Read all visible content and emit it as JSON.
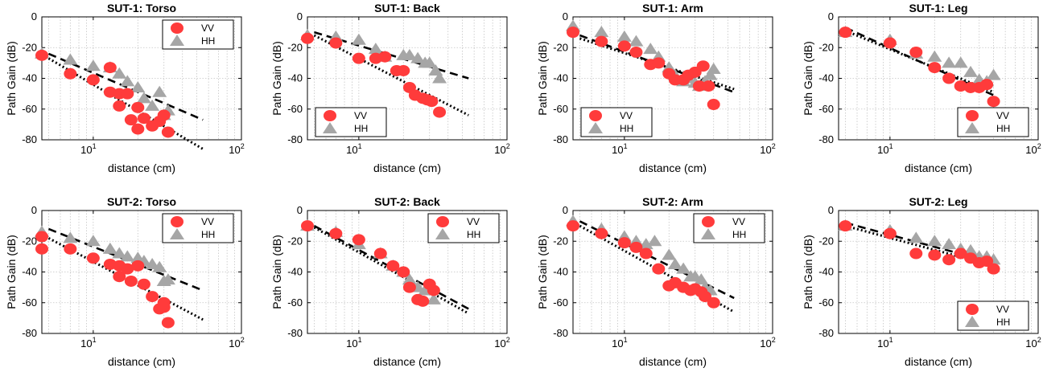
{
  "chart_data": [
    {
      "type": "scatter",
      "title": "SUT-1: Torso",
      "xlabel": "distance (cm)",
      "ylabel": "Path Gain (dB)",
      "xscale": "log",
      "xlim": [
        4.5,
        100
      ],
      "ylim": [
        -80,
        0
      ],
      "xticks": [
        "10",
        "2"
      ],
      "yticks": [
        "0",
        "-20",
        "-40",
        "-60",
        "-80"
      ],
      "legend": {
        "placement": "top-right",
        "entries": [
          "VV",
          "HH"
        ]
      },
      "series": [
        {
          "name": "VV",
          "marker": "circle",
          "color": "#ff3b3b",
          "x": [
            4.5,
            7,
            10,
            13,
            13,
            15,
            15,
            17,
            18,
            20,
            20,
            22,
            25,
            28,
            30,
            32
          ],
          "y": [
            -25,
            -37,
            -41,
            -33,
            -49,
            -50,
            -58,
            -50,
            -67,
            -59,
            -73,
            -66,
            -71,
            -68,
            -64,
            -75
          ]
        },
        {
          "name": "HH",
          "marker": "triangle",
          "color": "#a6a6a6",
          "x": [
            4.5,
            7,
            10,
            13,
            15,
            17,
            20,
            22,
            25,
            28,
            30,
            32
          ],
          "y": [
            -24,
            -28,
            -32,
            -33,
            -37,
            -42,
            -46,
            -53,
            -58,
            -49,
            -64,
            -61
          ]
        }
      ],
      "fit_lines": [
        {
          "style": "dashed",
          "x": [
            5,
            55
          ],
          "y": [
            -24,
            -67
          ]
        },
        {
          "style": "dotted",
          "x": [
            5,
            55
          ],
          "y": [
            -27,
            -86
          ]
        }
      ]
    },
    {
      "type": "scatter",
      "title": "SUT-1: Back",
      "xlabel": "distance (cm)",
      "ylabel": "Path Gain (dB)",
      "xscale": "log",
      "xlim": [
        4.5,
        100
      ],
      "ylim": [
        -80,
        0
      ],
      "xticks": [
        "10",
        "2"
      ],
      "yticks": [
        "0",
        "-20",
        "-40",
        "-60",
        "-80"
      ],
      "legend": {
        "placement": "bottom-left",
        "entries": [
          "VV",
          "HH"
        ]
      },
      "series": [
        {
          "name": "VV",
          "marker": "circle",
          "color": "#ff3b3b",
          "x": [
            4.5,
            7,
            10,
            13,
            15,
            18,
            20,
            22,
            24,
            27,
            29,
            31,
            35
          ],
          "y": [
            -14,
            -17,
            -27,
            -27,
            -26,
            -35,
            -35,
            -46,
            -51,
            -53,
            -54,
            -55,
            -62
          ]
        },
        {
          "name": "HH",
          "marker": "triangle",
          "color": "#a6a6a6",
          "x": [
            4.5,
            7,
            10,
            13,
            15,
            20,
            22,
            25,
            28,
            30,
            33,
            35
          ],
          "y": [
            -12,
            -13,
            -15,
            -21,
            -26,
            -25,
            -25,
            -27,
            -30,
            -30,
            -35,
            -40
          ]
        }
      ],
      "fit_lines": [
        {
          "style": "dashed",
          "x": [
            5,
            55
          ],
          "y": [
            -10,
            -40
          ]
        },
        {
          "style": "dotted",
          "x": [
            5,
            55
          ],
          "y": [
            -12,
            -64
          ]
        }
      ]
    },
    {
      "type": "scatter",
      "title": "SUT-1: Arm",
      "xlabel": "distance (cm)",
      "ylabel": "Path Gain (dB)",
      "xscale": "log",
      "xlim": [
        4.5,
        100
      ],
      "ylim": [
        -80,
        0
      ],
      "xticks": [
        "10",
        "2"
      ],
      "yticks": [
        "0",
        "-20",
        "-40",
        "-60",
        "-80"
      ],
      "legend": {
        "placement": "bottom-left",
        "entries": [
          "VV",
          "HH"
        ]
      },
      "series": [
        {
          "name": "VV",
          "marker": "circle",
          "color": "#ff3b3b",
          "x": [
            4.5,
            7,
            10,
            12,
            15,
            17,
            20,
            22,
            25,
            27,
            30,
            32,
            34,
            37,
            40
          ],
          "y": [
            -10,
            -16,
            -19,
            -23,
            -31,
            -30,
            -37,
            -41,
            -41,
            -38,
            -36,
            -45,
            -32,
            -45,
            -57
          ]
        },
        {
          "name": "HH",
          "marker": "triangle",
          "color": "#a6a6a6",
          "x": [
            4.5,
            7,
            10,
            12,
            15,
            17,
            20,
            22,
            25,
            27,
            30,
            32,
            35,
            38,
            40
          ],
          "y": [
            -6,
            -10,
            -13,
            -16,
            -21,
            -26,
            -33,
            -38,
            -42,
            -40,
            -43,
            -45,
            -42,
            -38,
            -34
          ]
        }
      ],
      "fit_lines": [
        {
          "style": "dashed",
          "x": [
            5,
            55
          ],
          "y": [
            -12,
            -49
          ]
        },
        {
          "style": "dotted",
          "x": [
            5,
            55
          ],
          "y": [
            -14,
            -47
          ]
        }
      ]
    },
    {
      "type": "scatter",
      "title": "SUT-1: Leg",
      "xlabel": "distance (cm)",
      "ylabel": "Path Gain (dB)",
      "xscale": "log",
      "xlim": [
        4.5,
        100
      ],
      "ylim": [
        -80,
        0
      ],
      "xticks": [
        "10",
        "2"
      ],
      "yticks": [
        "0",
        "-20",
        "-40",
        "-60",
        "-80"
      ],
      "legend": {
        "placement": "bottom-right",
        "entries": [
          "VV",
          "HH"
        ]
      },
      "series": [
        {
          "name": "VV",
          "marker": "circle",
          "color": "#ff3b3b",
          "x": [
            5,
            10,
            15,
            20,
            25,
            30,
            35,
            40,
            45,
            50
          ],
          "y": [
            -10,
            -17,
            -23,
            -33,
            -40,
            -45,
            -46,
            -46,
            -44,
            -55
          ]
        },
        {
          "name": "HH",
          "marker": "triangle",
          "color": "#a6a6a6",
          "x": [
            5,
            10,
            15,
            20,
            25,
            30,
            35,
            40,
            45,
            50
          ],
          "y": [
            -10,
            -15,
            -24,
            -26,
            -30,
            -30,
            -36,
            -41,
            -42,
            -38
          ]
        }
      ],
      "fit_lines": [
        {
          "style": "dashed",
          "x": [
            5,
            50
          ],
          "y": [
            -7,
            -51
          ]
        },
        {
          "style": "dotted",
          "x": [
            5,
            50
          ],
          "y": [
            -9,
            -49
          ]
        }
      ]
    },
    {
      "type": "scatter",
      "title": "SUT-2: Torso",
      "xlabel": "distance (cm)",
      "ylabel": "Path Gain (dB)",
      "xscale": "log",
      "xlim": [
        4.5,
        100
      ],
      "ylim": [
        -80,
        0
      ],
      "xticks": [
        "10",
        "2"
      ],
      "yticks": [
        "0",
        "-20",
        "-40",
        "-60",
        "-80"
      ],
      "legend": {
        "placement": "top-right",
        "entries": [
          "VV",
          "HH"
        ]
      },
      "series": [
        {
          "name": "VV",
          "marker": "circle",
          "color": "#ff3b3b",
          "x": [
            4.5,
            4.5,
            7,
            10,
            13,
            15,
            15,
            17,
            18,
            20,
            22,
            25,
            28,
            30,
            30,
            32
          ],
          "y": [
            -17,
            -25,
            -25,
            -31,
            -35,
            -36,
            -43,
            -38,
            -46,
            -36,
            -48,
            -56,
            -64,
            -60,
            -63,
            -73
          ]
        },
        {
          "name": "HH",
          "marker": "triangle",
          "color": "#a6a6a6",
          "x": [
            4.5,
            7,
            10,
            13,
            15,
            17,
            20,
            22,
            25,
            28,
            30,
            32
          ],
          "y": [
            -14,
            -18,
            -20,
            -25,
            -28,
            -30,
            -31,
            -33,
            -35,
            -37,
            -46,
            -45
          ]
        }
      ],
      "fit_lines": [
        {
          "style": "dashed",
          "x": [
            5,
            55
          ],
          "y": [
            -12,
            -52
          ]
        },
        {
          "style": "dotted",
          "x": [
            5,
            55
          ],
          "y": [
            -18,
            -71
          ]
        }
      ]
    },
    {
      "type": "scatter",
      "title": "SUT-2: Back",
      "xlabel": "distance (cm)",
      "ylabel": "Path Gain (dB)",
      "xscale": "log",
      "xlim": [
        4.5,
        100
      ],
      "ylim": [
        -80,
        0
      ],
      "xticks": [
        "10",
        "2"
      ],
      "yticks": [
        "0",
        "-20",
        "-40",
        "-60",
        "-80"
      ],
      "legend": {
        "placement": "top-right",
        "entries": [
          "VV",
          "HH"
        ]
      },
      "series": [
        {
          "name": "VV",
          "marker": "circle",
          "color": "#ff3b3b",
          "x": [
            4.5,
            7,
            10,
            14,
            17,
            20,
            22,
            25,
            27,
            30,
            32
          ],
          "y": [
            -10,
            -15,
            -19,
            -28,
            -36,
            -40,
            -50,
            -58,
            -59,
            -48,
            -52
          ]
        },
        {
          "name": "HH",
          "marker": "triangle",
          "color": "#a6a6a6",
          "x": [
            4.5,
            7,
            10,
            14,
            17,
            20,
            22,
            25,
            28,
            32
          ],
          "y": [
            -10,
            -14,
            -22,
            -28,
            -36,
            -40,
            -45,
            -50,
            -52,
            -58
          ]
        }
      ],
      "fit_lines": [
        {
          "style": "dashed",
          "x": [
            5,
            55
          ],
          "y": [
            -10,
            -64
          ]
        },
        {
          "style": "dotted",
          "x": [
            5,
            55
          ],
          "y": [
            -11,
            -67
          ]
        }
      ]
    },
    {
      "type": "scatter",
      "title": "SUT-2: Arm",
      "xlabel": "distance (cm)",
      "ylabel": "Path Gain (dB)",
      "xscale": "log",
      "xlim": [
        4.5,
        100
      ],
      "ylim": [
        -80,
        0
      ],
      "xticks": [
        "10",
        "2"
      ],
      "yticks": [
        "0",
        "-20",
        "-40",
        "-60",
        "-80"
      ],
      "legend": {
        "placement": "top-right",
        "entries": [
          "VV",
          "HH"
        ]
      },
      "series": [
        {
          "name": "VV",
          "marker": "circle",
          "color": "#ff3b3b",
          "x": [
            4.5,
            7,
            10,
            12,
            14,
            17,
            20,
            22,
            25,
            28,
            30,
            33,
            35,
            40
          ],
          "y": [
            -10,
            -15,
            -21,
            -24,
            -28,
            -38,
            -49,
            -47,
            -50,
            -52,
            -51,
            -53,
            -56,
            -60
          ]
        },
        {
          "name": "HH",
          "marker": "triangle",
          "color": "#a6a6a6",
          "x": [
            4.5,
            7,
            10,
            12,
            14,
            16,
            20,
            22,
            25,
            28,
            30,
            33,
            35,
            38
          ],
          "y": [
            -7,
            -12,
            -17,
            -20,
            -22,
            -20,
            -29,
            -35,
            -38,
            -43,
            -43,
            -45,
            -50,
            -52
          ]
        }
      ],
      "fit_lines": [
        {
          "style": "dashed",
          "x": [
            5,
            55
          ],
          "y": [
            -7,
            -57
          ]
        },
        {
          "style": "dotted",
          "x": [
            5,
            55
          ],
          "y": [
            -10,
            -66
          ]
        }
      ]
    },
    {
      "type": "scatter",
      "title": "SUT-2: Leg",
      "xlabel": "distance (cm)",
      "ylabel": "Path Gain (dB)",
      "xscale": "log",
      "xlim": [
        4.5,
        100
      ],
      "ylim": [
        -80,
        0
      ],
      "xticks": [
        "10",
        "2"
      ],
      "yticks": [
        "0",
        "-20",
        "-40",
        "-60",
        "-80"
      ],
      "legend": {
        "placement": "bottom-right",
        "entries": [
          "VV",
          "HH"
        ]
      },
      "series": [
        {
          "name": "VV",
          "marker": "circle",
          "color": "#ff3b3b",
          "x": [
            5,
            10,
            15,
            20,
            25,
            30,
            35,
            40,
            45,
            50
          ],
          "y": [
            -10,
            -15,
            -28,
            -29,
            -32,
            -28,
            -31,
            -34,
            -33,
            -38
          ]
        },
        {
          "name": "HH",
          "marker": "triangle",
          "color": "#a6a6a6",
          "x": [
            5,
            10,
            15,
            20,
            25,
            30,
            35,
            40,
            45,
            50
          ],
          "y": [
            -10,
            -13,
            -18,
            -20,
            -22,
            -25,
            -26,
            -30,
            -30,
            -32
          ]
        }
      ],
      "fit_lines": [
        {
          "style": "dashed",
          "x": [
            5,
            50
          ],
          "y": [
            -8,
            -34
          ]
        },
        {
          "style": "dotted",
          "x": [
            5,
            50
          ],
          "y": [
            -10,
            -36
          ]
        }
      ]
    }
  ]
}
